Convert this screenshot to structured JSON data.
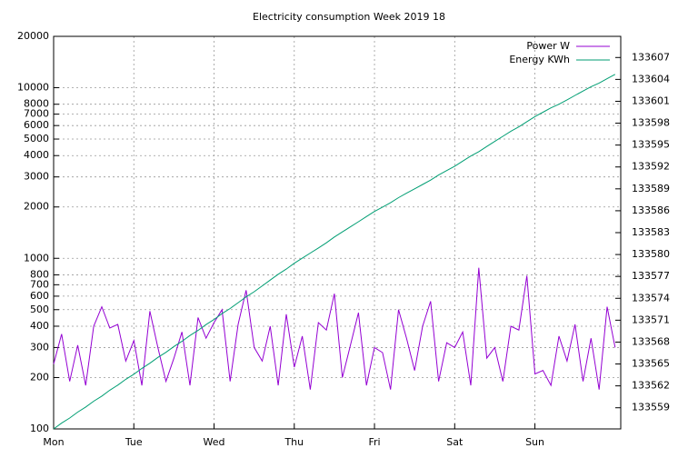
{
  "chart_data": {
    "type": "line",
    "title": "Electricity consumption Week 2019 18",
    "x": [
      0,
      0.1,
      0.2,
      0.3,
      0.4,
      0.5,
      0.6,
      0.7,
      0.8,
      0.9,
      1,
      1.1,
      1.2,
      1.3,
      1.4,
      1.5,
      1.6,
      1.7,
      1.8,
      1.9,
      2,
      2.1,
      2.2,
      2.3,
      2.4,
      2.5,
      2.6,
      2.7,
      2.8,
      2.9,
      3,
      3.1,
      3.2,
      3.3,
      3.4,
      3.5,
      3.6,
      3.7,
      3.8,
      3.9,
      4,
      4.1,
      4.2,
      4.3,
      4.4,
      4.5,
      4.6,
      4.7,
      4.8,
      4.9,
      5,
      5.1,
      5.2,
      5.3,
      5.4,
      5.5,
      5.6,
      5.7,
      5.8,
      5.9,
      6,
      6.1,
      6.2,
      6.3,
      6.4,
      6.5,
      6.6,
      6.7,
      6.8,
      6.9,
      7
    ],
    "series": [
      {
        "name": "Power W",
        "color": "#9400d3",
        "values": [
          240,
          360,
          190,
          310,
          180,
          400,
          520,
          390,
          410,
          250,
          330,
          180,
          490,
          300,
          190,
          260,
          370,
          180,
          450,
          340,
          420,
          500,
          190,
          410,
          650,
          300,
          250,
          400,
          180,
          470,
          230,
          350,
          170,
          420,
          380,
          620,
          200,
          310,
          480,
          180,
          300,
          280,
          170,
          500,
          340,
          220,
          400,
          560,
          190,
          320,
          300,
          370,
          180,
          880,
          260,
          300,
          190,
          400,
          380,
          790,
          210,
          220,
          180,
          350,
          250,
          410,
          190,
          340,
          170,
          520,
          300
        ]
      },
      {
        "name": "Energy KWh",
        "color": "#009e73",
        "axis": "y2",
        "values": [
          133556.1,
          133556.9,
          133557.6,
          133558.4,
          133559.1,
          133559.9,
          133560.6,
          133561.4,
          133562.1,
          133562.9,
          133563.6,
          133564.4,
          133565.1,
          133565.9,
          133566.6,
          133567.4,
          133568.1,
          133568.9,
          133569.6,
          133570.4,
          133571.1,
          133571.9,
          133572.6,
          133573.4,
          133574.2,
          133574.9,
          133575.7,
          133576.5,
          133577.3,
          133578.0,
          133578.8,
          133579.5,
          133580.2,
          133580.9,
          133581.6,
          133582.4,
          133583.1,
          133583.8,
          133584.5,
          133585.2,
          133585.9,
          133586.5,
          133587.1,
          133587.8,
          133588.4,
          133589.0,
          133589.6,
          133590.2,
          133590.9,
          133591.5,
          133592.1,
          133592.8,
          133593.5,
          133594.1,
          133594.8,
          133595.5,
          133596.2,
          133596.9,
          133597.5,
          133598.2,
          133598.9,
          133599.5,
          133600.1,
          133600.6,
          133601.2,
          133601.8,
          133602.4,
          133603.0,
          133603.5,
          133604.1,
          133604.7
        ]
      }
    ],
    "xlim": [
      0,
      7.07
    ],
    "xticks": [
      {
        "value": 0,
        "label": "Mon"
      },
      {
        "value": 1,
        "label": "Tue"
      },
      {
        "value": 2,
        "label": "Wed"
      },
      {
        "value": 3,
        "label": "Thu"
      },
      {
        "value": 4,
        "label": "Fri"
      },
      {
        "value": 5,
        "label": "Sat"
      },
      {
        "value": 6,
        "label": "Sun"
      }
    ],
    "ylim": [
      100,
      20000
    ],
    "log_y": true,
    "yticks": [
      100,
      200,
      300,
      400,
      500,
      600,
      700,
      800,
      1000,
      2000,
      3000,
      4000,
      5000,
      6000,
      7000,
      8000,
      10000,
      20000
    ],
    "y2lim": [
      133556.1,
      133609.9
    ],
    "y2ticks": [
      133559,
      133562,
      133565,
      133568,
      133571,
      133574,
      133577,
      133580,
      133583,
      133586,
      133589,
      133592,
      133595,
      133598,
      133601,
      133604,
      133607
    ],
    "grid": true,
    "legend": "top-right"
  }
}
